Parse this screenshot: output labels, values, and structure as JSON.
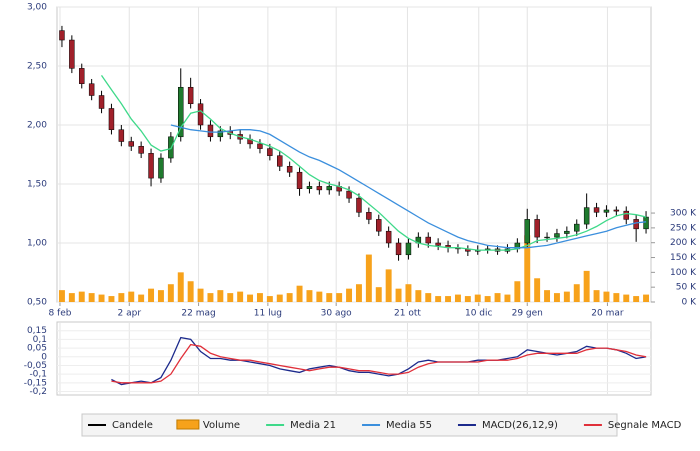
{
  "chart_data": [
    {
      "type": "candlestick",
      "xlim": [
        0,
        60
      ],
      "xticks": [
        {
          "value": 0.3,
          "label": "8 feb"
        },
        {
          "value": 7.3,
          "label": "2 apr"
        },
        {
          "value": 14.3,
          "label": "22 mag"
        },
        {
          "value": 21.3,
          "label": "11 lug"
        },
        {
          "value": 28.2,
          "label": "30 ago"
        },
        {
          "value": 35.4,
          "label": "21 ott"
        },
        {
          "value": 42.6,
          "label": "10 dic"
        },
        {
          "value": 47.5,
          "label": "29 gen"
        },
        {
          "value": 55.6,
          "label": "20 mar"
        }
      ],
      "ylim": [
        0.5,
        3.0
      ],
      "yticks": [
        {
          "value": 3.0,
          "label": "3,00"
        },
        {
          "value": 2.5,
          "label": "2,50"
        },
        {
          "value": 2.0,
          "label": "2,00"
        },
        {
          "value": 1.5,
          "label": "1,50"
        },
        {
          "value": 1.0,
          "label": "1,00"
        },
        {
          "value": 0.5,
          "label": "0,50"
        }
      ],
      "y2lim": [
        0,
        995
      ],
      "y2ticks": [
        {
          "value": 0,
          "label": "0 K"
        },
        {
          "value": 50,
          "label": "50 K"
        },
        {
          "value": 100,
          "label": "100 K"
        },
        {
          "value": 150,
          "label": "150 K"
        },
        {
          "value": 200,
          "label": "200 K"
        },
        {
          "value": 250,
          "label": "250 K"
        },
        {
          "value": 300,
          "label": "300 K"
        }
      ],
      "grid": true,
      "series": [
        {
          "name": "Candele",
          "type": "candlestick",
          "color": "#000000",
          "up_color": "#1f7a2e",
          "down_color": "#a0202a",
          "open": [
            2.8,
            2.72,
            2.48,
            2.35,
            2.25,
            2.14,
            1.96,
            1.86,
            1.82,
            1.76,
            1.55,
            1.72,
            1.9,
            2.32,
            2.18,
            2.0,
            1.9,
            1.95,
            1.92,
            1.88,
            1.84,
            1.8,
            1.74,
            1.65,
            1.6,
            1.46,
            1.48,
            1.45,
            1.48,
            1.44,
            1.38,
            1.26,
            1.2,
            1.1,
            1.0,
            0.9,
            1.0,
            1.05,
            1.0,
            0.98,
            0.96,
            0.95,
            0.93,
            0.94,
            0.95,
            0.93,
            0.95,
            1.0,
            1.2,
            1.05,
            1.05,
            1.08,
            1.1,
            1.16,
            1.3,
            1.26,
            1.28,
            1.27,
            1.2,
            1.12
          ],
          "high": [
            2.84,
            2.76,
            2.52,
            2.39,
            2.29,
            2.18,
            2.0,
            1.9,
            1.86,
            1.8,
            1.76,
            1.94,
            2.48,
            2.4,
            2.22,
            2.04,
            1.99,
            1.99,
            1.96,
            1.92,
            1.88,
            1.84,
            1.78,
            1.69,
            1.64,
            1.52,
            1.52,
            1.52,
            1.52,
            1.48,
            1.42,
            1.3,
            1.24,
            1.14,
            1.04,
            1.04,
            1.09,
            1.09,
            1.04,
            1.02,
            0.99,
            0.98,
            0.98,
            0.98,
            0.98,
            0.99,
            1.04,
            1.29,
            1.24,
            1.09,
            1.12,
            1.14,
            1.2,
            1.42,
            1.34,
            1.32,
            1.31,
            1.31,
            1.24,
            1.27
          ],
          "low": [
            2.66,
            2.44,
            2.31,
            2.21,
            2.1,
            1.92,
            1.82,
            1.78,
            1.72,
            1.48,
            1.51,
            1.68,
            1.86,
            2.14,
            1.96,
            1.86,
            1.86,
            1.88,
            1.84,
            1.8,
            1.76,
            1.7,
            1.61,
            1.56,
            1.4,
            1.42,
            1.41,
            1.41,
            1.4,
            1.34,
            1.22,
            1.16,
            1.06,
            0.96,
            0.85,
            0.86,
            0.96,
            0.96,
            0.94,
            0.92,
            0.91,
            0.89,
            0.9,
            0.91,
            0.9,
            0.91,
            0.92,
            0.96,
            1.0,
            1.01,
            1.01,
            1.04,
            1.06,
            1.12,
            1.22,
            1.22,
            1.23,
            1.16,
            1.01,
            1.08
          ],
          "close": [
            2.72,
            2.48,
            2.35,
            2.25,
            2.14,
            1.96,
            1.86,
            1.82,
            1.76,
            1.55,
            1.72,
            1.9,
            2.32,
            2.18,
            2.0,
            1.9,
            1.95,
            1.92,
            1.88,
            1.84,
            1.8,
            1.74,
            1.65,
            1.6,
            1.46,
            1.48,
            1.45,
            1.48,
            1.44,
            1.38,
            1.26,
            1.2,
            1.1,
            1.0,
            0.9,
            1.0,
            1.05,
            1.0,
            0.98,
            0.96,
            0.95,
            0.93,
            0.94,
            0.95,
            0.93,
            0.95,
            1.0,
            1.2,
            1.05,
            1.05,
            1.08,
            1.1,
            1.16,
            1.3,
            1.26,
            1.28,
            1.27,
            1.2,
            1.12,
            1.22
          ]
        },
        {
          "name": "Volume",
          "type": "bar",
          "axis": "y2",
          "color": "#f7a21b",
          "values": [
            40,
            30,
            35,
            30,
            25,
            20,
            30,
            35,
            25,
            45,
            40,
            60,
            100,
            70,
            45,
            30,
            40,
            30,
            35,
            25,
            30,
            20,
            25,
            30,
            55,
            40,
            35,
            30,
            30,
            45,
            60,
            160,
            50,
            110,
            45,
            60,
            40,
            30,
            20,
            20,
            25,
            20,
            25,
            20,
            30,
            25,
            70,
            225,
            80,
            40,
            30,
            35,
            60,
            105,
            40,
            35,
            30,
            25,
            20,
            25
          ]
        },
        {
          "name": "Media 21",
          "type": "line",
          "color": "#3fd98a",
          "values": [
            null,
            null,
            null,
            null,
            2.42,
            2.3,
            2.18,
            2.05,
            1.95,
            1.83,
            1.78,
            1.8,
            1.98,
            2.1,
            2.12,
            2.05,
            1.97,
            1.93,
            1.9,
            1.88,
            1.85,
            1.82,
            1.78,
            1.72,
            1.65,
            1.58,
            1.53,
            1.5,
            1.48,
            1.45,
            1.4,
            1.33,
            1.26,
            1.18,
            1.1,
            1.04,
            1.0,
            0.98,
            0.97,
            0.96,
            0.96,
            0.95,
            0.94,
            0.94,
            0.94,
            0.94,
            0.95,
            0.98,
            1.02,
            1.03,
            1.04,
            1.05,
            1.07,
            1.1,
            1.14,
            1.19,
            1.23,
            1.25,
            1.24,
            1.22
          ]
        },
        {
          "name": "Media 55",
          "type": "line",
          "color": "#3b8fdd",
          "values": [
            null,
            null,
            null,
            null,
            null,
            null,
            null,
            null,
            null,
            null,
            null,
            2.0,
            1.98,
            1.96,
            1.95,
            1.94,
            1.94,
            1.95,
            1.96,
            1.96,
            1.95,
            1.92,
            1.87,
            1.82,
            1.77,
            1.73,
            1.7,
            1.66,
            1.62,
            1.57,
            1.52,
            1.47,
            1.42,
            1.37,
            1.32,
            1.27,
            1.22,
            1.17,
            1.13,
            1.09,
            1.05,
            1.02,
            1.0,
            0.98,
            0.97,
            0.96,
            0.96,
            0.96,
            0.97,
            0.98,
            1.0,
            1.02,
            1.04,
            1.06,
            1.08,
            1.1,
            1.13,
            1.15,
            1.17,
            1.18
          ]
        }
      ]
    },
    {
      "type": "line",
      "xlim": [
        0,
        60
      ],
      "ylim": [
        -0.22,
        0.2
      ],
      "yticks": [
        {
          "value": 0.15,
          "label": "0,15"
        },
        {
          "value": 0.1,
          "label": "0,1"
        },
        {
          "value": 0.05,
          "label": "0,05"
        },
        {
          "value": 0,
          "label": "0"
        },
        {
          "value": -0.05,
          "label": "-0,05"
        },
        {
          "value": -0.1,
          "label": "-0,1"
        },
        {
          "value": -0.15,
          "label": "-0,15"
        },
        {
          "value": -0.2,
          "label": "-0,2"
        }
      ],
      "grid": true,
      "series": [
        {
          "name": "MACD(26,12,9)",
          "color": "#1c2a8c",
          "values": [
            null,
            null,
            null,
            null,
            null,
            -0.13,
            -0.16,
            -0.15,
            -0.14,
            -0.15,
            -0.12,
            -0.02,
            0.11,
            0.1,
            0.03,
            -0.01,
            -0.01,
            -0.02,
            -0.02,
            -0.03,
            -0.04,
            -0.05,
            -0.07,
            -0.08,
            -0.09,
            -0.07,
            -0.06,
            -0.05,
            -0.06,
            -0.08,
            -0.09,
            -0.09,
            -0.1,
            -0.11,
            -0.1,
            -0.07,
            -0.03,
            -0.02,
            -0.03,
            -0.03,
            -0.03,
            -0.03,
            -0.02,
            -0.02,
            -0.02,
            -0.01,
            0.0,
            0.04,
            0.03,
            0.02,
            0.01,
            0.02,
            0.03,
            0.06,
            0.05,
            0.05,
            0.04,
            0.02,
            -0.01,
            0.0
          ]
        },
        {
          "name": "Segnale MACD",
          "color": "#e0303a",
          "values": [
            null,
            null,
            null,
            null,
            null,
            -0.14,
            -0.15,
            -0.15,
            -0.15,
            -0.15,
            -0.14,
            -0.1,
            -0.01,
            0.07,
            0.06,
            0.02,
            0.0,
            -0.01,
            -0.02,
            -0.02,
            -0.03,
            -0.04,
            -0.05,
            -0.06,
            -0.07,
            -0.08,
            -0.07,
            -0.06,
            -0.06,
            -0.07,
            -0.08,
            -0.08,
            -0.09,
            -0.1,
            -0.1,
            -0.09,
            -0.06,
            -0.04,
            -0.03,
            -0.03,
            -0.03,
            -0.03,
            -0.03,
            -0.02,
            -0.02,
            -0.02,
            -0.01,
            0.01,
            0.02,
            0.02,
            0.02,
            0.02,
            0.02,
            0.04,
            0.05,
            0.05,
            0.04,
            0.03,
            0.01,
            0.0
          ]
        }
      ]
    }
  ]
}
